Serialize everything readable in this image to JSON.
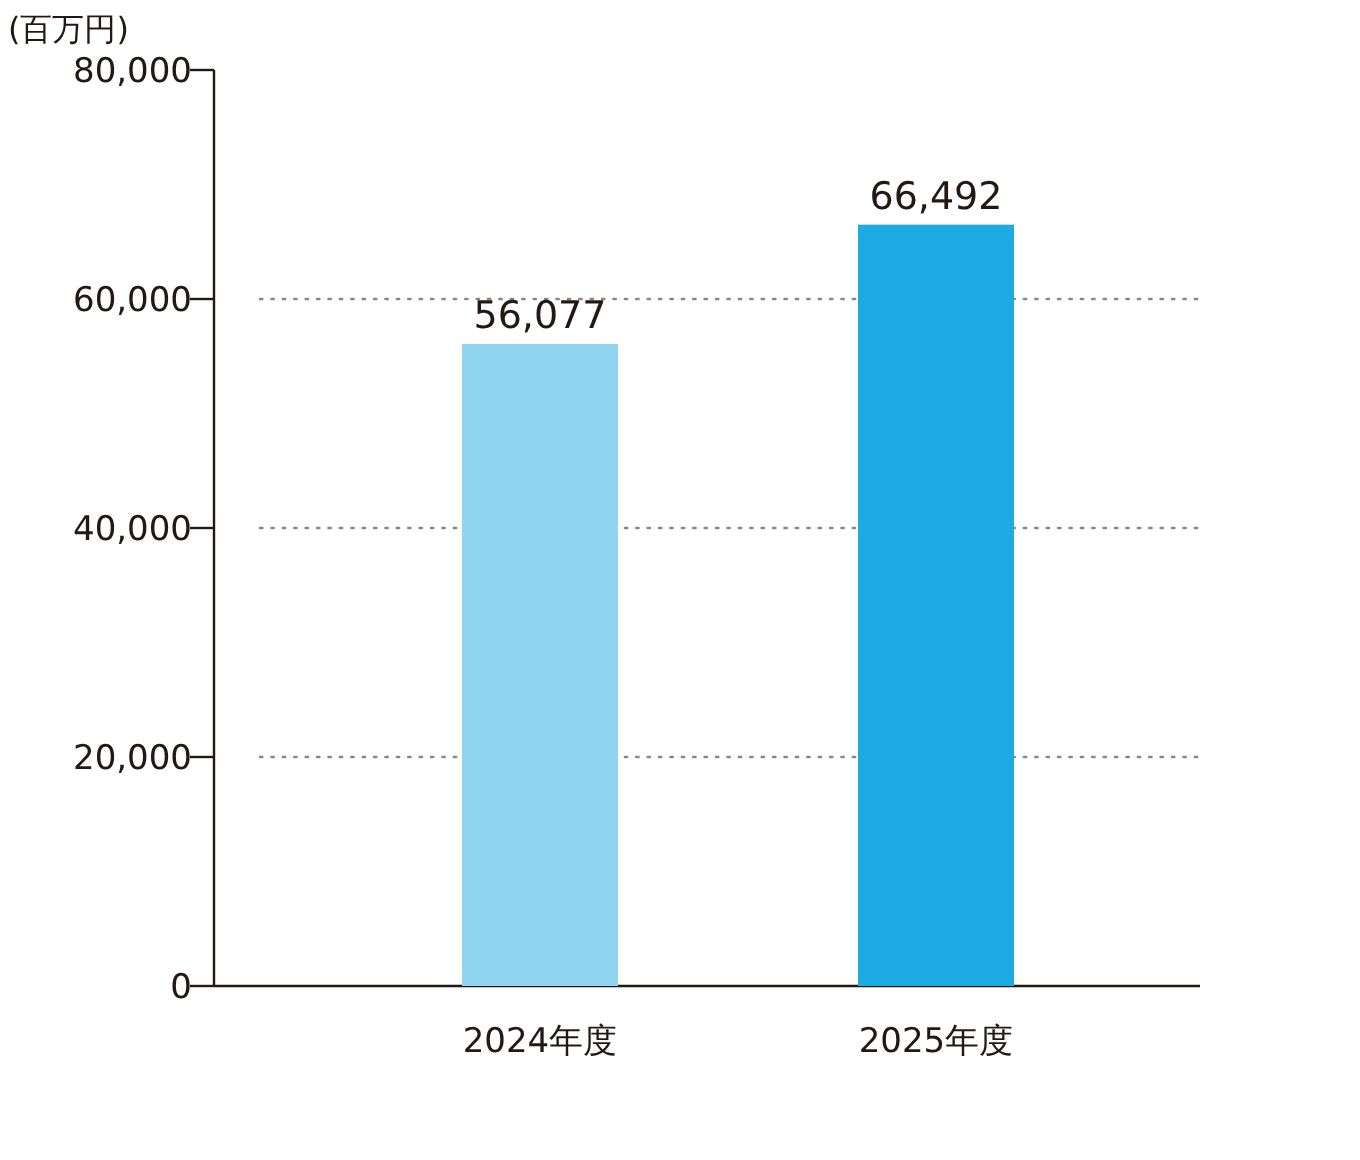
{
  "chart_data": {
    "type": "bar",
    "ylabel": "(百万円)",
    "categories": [
      "2024年度",
      "2025年度"
    ],
    "values": [
      56077,
      66492
    ],
    "colors": [
      "#8fd5f2",
      "#1eabe3"
    ],
    "ylim": [
      0,
      80000
    ],
    "yticks": [
      {
        "value": 0,
        "label": "0"
      },
      {
        "value": 20000,
        "label": "20,000"
      },
      {
        "value": 40000,
        "label": "40,000"
      },
      {
        "value": 60000,
        "label": "60,000"
      },
      {
        "value": 80000,
        "label": "80,000"
      }
    ],
    "value_labels": [
      "56,077",
      "66,492"
    ],
    "grid": "y"
  }
}
